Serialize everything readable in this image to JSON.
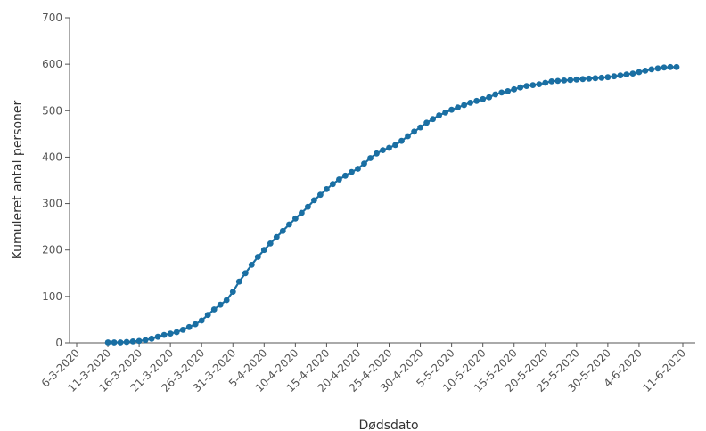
{
  "chart_data": {
    "type": "line",
    "xlabel": "Dødsdato",
    "ylabel": "Kumuleret antal personer",
    "ylim": [
      0,
      700
    ],
    "yticks": [
      0,
      100,
      200,
      300,
      400,
      500,
      600,
      700
    ],
    "xlim": [
      "2020-03-06",
      "2020-06-11"
    ],
    "xtick_labels": [
      "6-3-2020",
      "11-3-2020",
      "16-3-2020",
      "21-3-2020",
      "26-3-2020",
      "31-3-2020",
      "5-4-2020",
      "10-4-2020",
      "15-4-2020",
      "20-4-2020",
      "25-4-2020",
      "30-4-2020",
      "5-5-2020",
      "10-5-2020",
      "15-5-2020",
      "20-5-2020",
      "25-5-2020",
      "30-5-2020",
      "4-6-2020",
      "11-6-2020"
    ],
    "grid": false,
    "legend": "none",
    "colors": {
      "series": "#1a6fa3",
      "axis": "#555555"
    },
    "x": [
      "2020-03-11",
      "2020-03-12",
      "2020-03-13",
      "2020-03-14",
      "2020-03-15",
      "2020-03-16",
      "2020-03-17",
      "2020-03-18",
      "2020-03-19",
      "2020-03-20",
      "2020-03-21",
      "2020-03-22",
      "2020-03-23",
      "2020-03-24",
      "2020-03-25",
      "2020-03-26",
      "2020-03-27",
      "2020-03-28",
      "2020-03-29",
      "2020-03-30",
      "2020-03-31",
      "2020-04-01",
      "2020-04-02",
      "2020-04-03",
      "2020-04-04",
      "2020-04-05",
      "2020-04-06",
      "2020-04-07",
      "2020-04-08",
      "2020-04-09",
      "2020-04-10",
      "2020-04-11",
      "2020-04-12",
      "2020-04-13",
      "2020-04-14",
      "2020-04-15",
      "2020-04-16",
      "2020-04-17",
      "2020-04-18",
      "2020-04-19",
      "2020-04-20",
      "2020-04-21",
      "2020-04-22",
      "2020-04-23",
      "2020-04-24",
      "2020-04-25",
      "2020-04-26",
      "2020-04-27",
      "2020-04-28",
      "2020-04-29",
      "2020-04-30",
      "2020-05-01",
      "2020-05-02",
      "2020-05-03",
      "2020-05-04",
      "2020-05-05",
      "2020-05-06",
      "2020-05-07",
      "2020-05-08",
      "2020-05-09",
      "2020-05-10",
      "2020-05-11",
      "2020-05-12",
      "2020-05-13",
      "2020-05-14",
      "2020-05-15",
      "2020-05-16",
      "2020-05-17",
      "2020-05-18",
      "2020-05-19",
      "2020-05-20",
      "2020-05-21",
      "2020-05-22",
      "2020-05-23",
      "2020-05-24",
      "2020-05-25",
      "2020-05-26",
      "2020-05-27",
      "2020-05-28",
      "2020-05-29",
      "2020-05-30",
      "2020-05-31",
      "2020-06-01",
      "2020-06-02",
      "2020-06-03",
      "2020-06-04",
      "2020-06-05",
      "2020-06-06",
      "2020-06-07",
      "2020-06-08",
      "2020-06-09",
      "2020-06-10"
    ],
    "series": [
      {
        "values": [
          1,
          1,
          1,
          2,
          3,
          4,
          6,
          9,
          13,
          17,
          20,
          23,
          28,
          34,
          40,
          48,
          60,
          72,
          82,
          92,
          110,
          132,
          150,
          168,
          185,
          200,
          214,
          228,
          241,
          255,
          268,
          280,
          293,
          307,
          319,
          331,
          342,
          352,
          360,
          368,
          375,
          386,
          398,
          408,
          415,
          420,
          426,
          435,
          445,
          455,
          464,
          474,
          482,
          490,
          496,
          502,
          507,
          512,
          517,
          521,
          525,
          529,
          535,
          539,
          542,
          546,
          550,
          553,
          555,
          557,
          560,
          563,
          564,
          565,
          566,
          567,
          568,
          569,
          570,
          571,
          572,
          574,
          576,
          578,
          580,
          583,
          586,
          589,
          591,
          593,
          594,
          594
        ]
      }
    ]
  }
}
